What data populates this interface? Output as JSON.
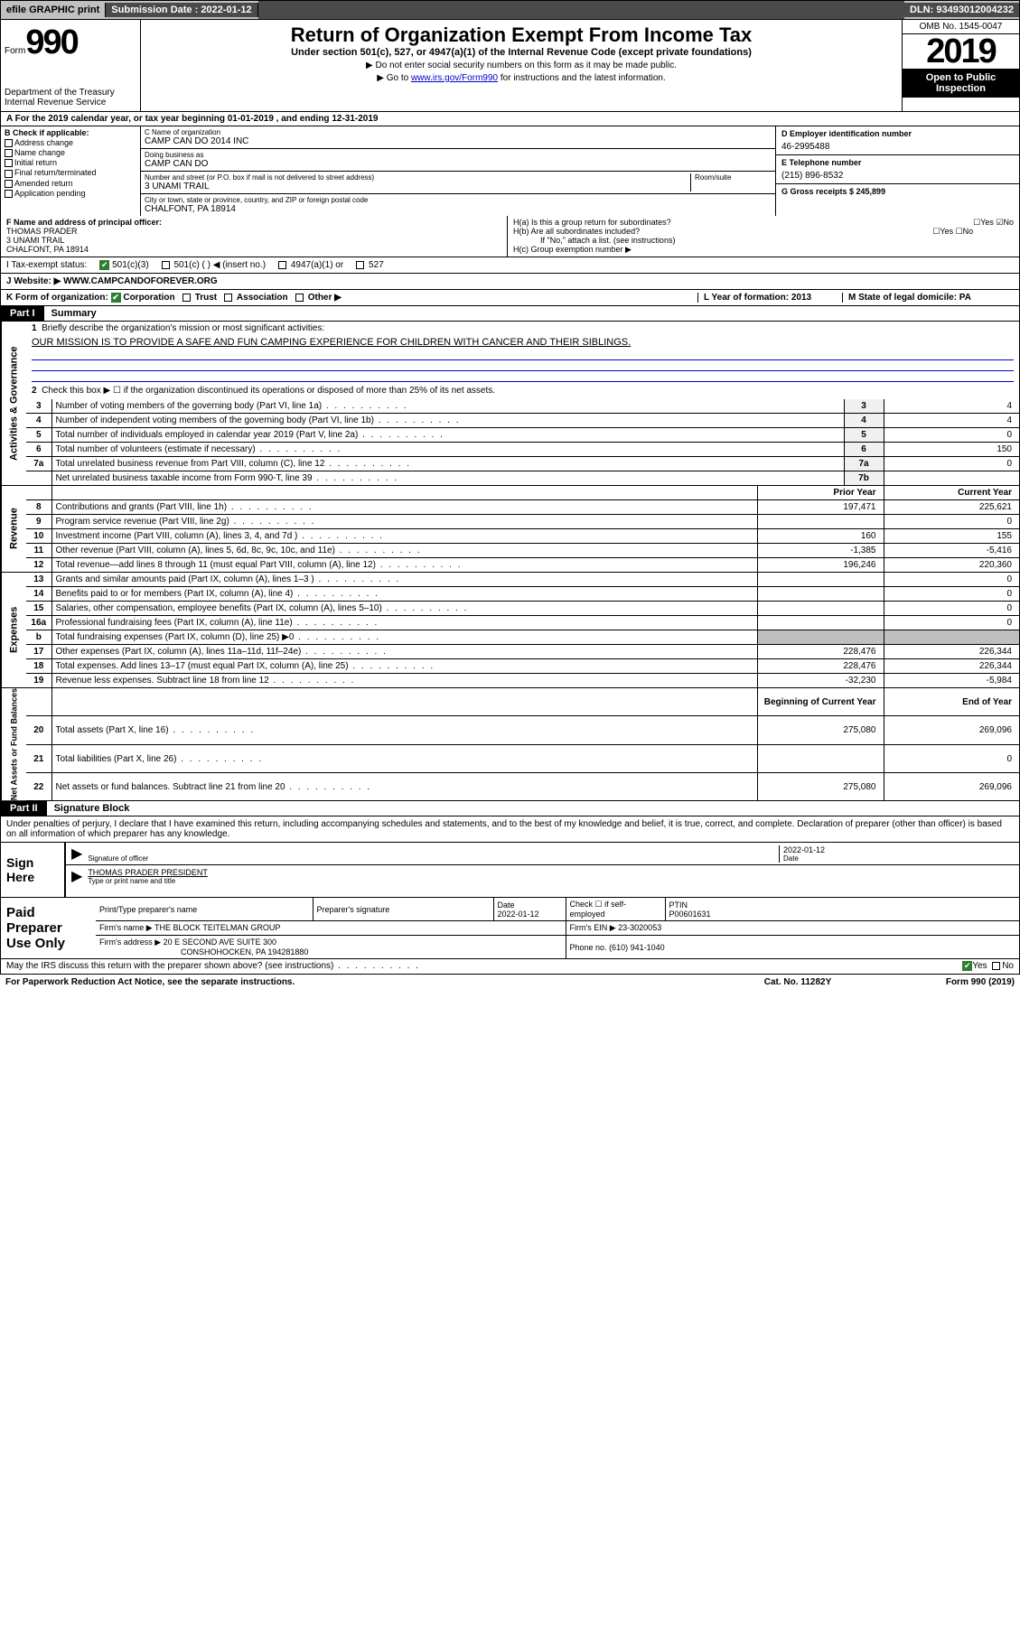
{
  "topbar": {
    "efile": "efile GRAPHIC print",
    "sub_label": "Submission Date : 2022-01-12",
    "dln": "DLN: 93493012004232"
  },
  "header": {
    "form_word": "Form",
    "form_num": "990",
    "dept": "Department of the Treasury\nInternal Revenue Service",
    "title": "Return of Organization Exempt From Income Tax",
    "subtitle": "Under section 501(c), 527, or 4947(a)(1) of the Internal Revenue Code (except private foundations)",
    "note1": "▶ Do not enter social security numbers on this form as it may be made public.",
    "note2_pre": "▶ Go to ",
    "note2_link": "www.irs.gov/Form990",
    "note2_post": " for instructions and the latest information.",
    "omb": "OMB No. 1545-0047",
    "year": "2019",
    "open": "Open to Public Inspection"
  },
  "row_a": "A For the 2019 calendar year, or tax year beginning 01-01-2019    , and ending 12-31-2019",
  "col_b": {
    "hdr": "B Check if applicable:",
    "items": [
      "Address change",
      "Name change",
      "Initial return",
      "Final return/terminated",
      "Amended return",
      "Application pending"
    ]
  },
  "col_c": {
    "name_label": "C Name of organization",
    "name": "CAMP CAN DO 2014 INC",
    "dba_label": "Doing business as",
    "dba": "CAMP CAN DO",
    "addr_label": "Number and street (or P.O. box if mail is not delivered to street address)",
    "addr": "3 UNAMI TRAIL",
    "room_label": "Room/suite",
    "city_label": "City or town, state or province, country, and ZIP or foreign postal code",
    "city": "CHALFONT, PA  18914"
  },
  "col_d": {
    "ein_label": "D Employer identification number",
    "ein": "46-2995488",
    "tel_label": "E Telephone number",
    "tel": "(215) 896-8532",
    "gross_label": "G Gross receipts $ 245,899"
  },
  "section_f": {
    "label": "F Name and address of principal officer:",
    "name": "THOMAS PRADER",
    "addr1": "3 UNAMI TRAIL",
    "addr2": "CHALFONT, PA  18914"
  },
  "section_h": {
    "ha": "H(a)  Is this a group return for subordinates?",
    "hb": "H(b)  Are all subordinates included?",
    "hb_note": "If \"No,\" attach a list. (see instructions)",
    "hc": "H(c)  Group exemption number ▶"
  },
  "row_i": {
    "label": "I   Tax-exempt status:",
    "o1": "501(c)(3)",
    "o2": "501(c) (  ) ◀ (insert no.)",
    "o3": "4947(a)(1) or",
    "o4": "527"
  },
  "row_j": "J   Website: ▶   WWW.CAMPCANDOFOREVER.ORG",
  "row_k": {
    "left": "K Form of organization:",
    "corp": "Corporation",
    "trust": "Trust",
    "assoc": "Association",
    "other": "Other ▶",
    "mid": "L Year of formation: 2013",
    "right": "M State of legal domicile: PA"
  },
  "part1": {
    "hdr": "Part I",
    "title": "Summary",
    "q1": "Briefly describe the organization's mission or most significant activities:",
    "mission": "OUR MISSION IS TO PROVIDE A SAFE AND FUN CAMPING EXPERIENCE FOR CHILDREN WITH CANCER AND THEIR SIBLINGS.",
    "q2": "Check this box ▶ ☐  if the organization discontinued its operations or disposed of more than 25% of its net assets.",
    "side1": "Activities & Governance",
    "side2": "Revenue",
    "side3": "Expenses",
    "side4": "Net Assets or Fund Balances",
    "rows_gov": [
      {
        "n": "3",
        "d": "Number of voting members of the governing body (Part VI, line 1a)",
        "b": "3",
        "v": "4"
      },
      {
        "n": "4",
        "d": "Number of independent voting members of the governing body (Part VI, line 1b)",
        "b": "4",
        "v": "4"
      },
      {
        "n": "5",
        "d": "Total number of individuals employed in calendar year 2019 (Part V, line 2a)",
        "b": "5",
        "v": "0"
      },
      {
        "n": "6",
        "d": "Total number of volunteers (estimate if necessary)",
        "b": "6",
        "v": "150"
      },
      {
        "n": "7a",
        "d": "Total unrelated business revenue from Part VIII, column (C), line 12",
        "b": "7a",
        "v": "0"
      },
      {
        "n": "",
        "d": "Net unrelated business taxable income from Form 990-T, line 39",
        "b": "7b",
        "v": ""
      }
    ],
    "col_prior": "Prior Year",
    "col_curr": "Current Year",
    "rows_rev": [
      {
        "n": "8",
        "d": "Contributions and grants (Part VIII, line 1h)",
        "p": "197,471",
        "c": "225,621"
      },
      {
        "n": "9",
        "d": "Program service revenue (Part VIII, line 2g)",
        "p": "",
        "c": "0"
      },
      {
        "n": "10",
        "d": "Investment income (Part VIII, column (A), lines 3, 4, and 7d )",
        "p": "160",
        "c": "155"
      },
      {
        "n": "11",
        "d": "Other revenue (Part VIII, column (A), lines 5, 6d, 8c, 9c, 10c, and 11e)",
        "p": "-1,385",
        "c": "-5,416"
      },
      {
        "n": "12",
        "d": "Total revenue—add lines 8 through 11 (must equal Part VIII, column (A), line 12)",
        "p": "196,246",
        "c": "220,360"
      }
    ],
    "rows_exp": [
      {
        "n": "13",
        "d": "Grants and similar amounts paid (Part IX, column (A), lines 1–3 )",
        "p": "",
        "c": "0"
      },
      {
        "n": "14",
        "d": "Benefits paid to or for members (Part IX, column (A), line 4)",
        "p": "",
        "c": "0"
      },
      {
        "n": "15",
        "d": "Salaries, other compensation, employee benefits (Part IX, column (A), lines 5–10)",
        "p": "",
        "c": "0"
      },
      {
        "n": "16a",
        "d": "Professional fundraising fees (Part IX, column (A), line 11e)",
        "p": "",
        "c": "0"
      },
      {
        "n": "b",
        "d": "Total fundraising expenses (Part IX, column (D), line 25) ▶0",
        "p": "SHADE",
        "c": "SHADE"
      },
      {
        "n": "17",
        "d": "Other expenses (Part IX, column (A), lines 11a–11d, 11f–24e)",
        "p": "228,476",
        "c": "226,344"
      },
      {
        "n": "18",
        "d": "Total expenses. Add lines 13–17 (must equal Part IX, column (A), line 25)",
        "p": "228,476",
        "c": "226,344"
      },
      {
        "n": "19",
        "d": "Revenue less expenses. Subtract line 18 from line 12",
        "p": "-32,230",
        "c": "-5,984"
      }
    ],
    "col_beg": "Beginning of Current Year",
    "col_end": "End of Year",
    "rows_net": [
      {
        "n": "20",
        "d": "Total assets (Part X, line 16)",
        "p": "275,080",
        "c": "269,096"
      },
      {
        "n": "21",
        "d": "Total liabilities (Part X, line 26)",
        "p": "",
        "c": "0"
      },
      {
        "n": "22",
        "d": "Net assets or fund balances. Subtract line 21 from line 20",
        "p": "275,080",
        "c": "269,096"
      }
    ]
  },
  "part2": {
    "hdr": "Part II",
    "title": "Signature Block",
    "text": "Under penalties of perjury, I declare that I have examined this return, including accompanying schedules and statements, and to the best of my knowledge and belief, it is true, correct, and complete. Declaration of preparer (other than officer) is based on all information of which preparer has any knowledge.",
    "sign_here": "Sign Here",
    "sig_officer": "Signature of officer",
    "date_label": "Date",
    "date_val": "2022-01-12",
    "officer_name": "THOMAS PRADER  PRESIDENT",
    "type_name": "Type or print name and title",
    "paid": "Paid Preparer Use Only",
    "prep_name_label": "Print/Type preparer's name",
    "prep_sig_label": "Preparer's signature",
    "prep_date_label": "Date",
    "prep_date": "2022-01-12",
    "check_self": "Check ☐ if self-employed",
    "ptin_label": "PTIN",
    "ptin": "P00601631",
    "firm_name_label": "Firm's name    ▶",
    "firm_name": "THE BLOCK TEITELMAN GROUP",
    "firm_ein_label": "Firm's EIN ▶",
    "firm_ein": "23-3020053",
    "firm_addr_label": "Firm's address ▶",
    "firm_addr1": "20 E SECOND AVE SUITE 300",
    "firm_addr2": "CONSHOHOCKEN, PA  194281880",
    "phone_label": "Phone no.",
    "phone": "(610) 941-1040",
    "discuss": "May the IRS discuss this return with the preparer shown above? (see instructions)",
    "paperwork": "For Paperwork Reduction Act Notice, see the separate instructions.",
    "catno": "Cat. No. 11282Y",
    "formno": "Form 990 (2019)"
  }
}
